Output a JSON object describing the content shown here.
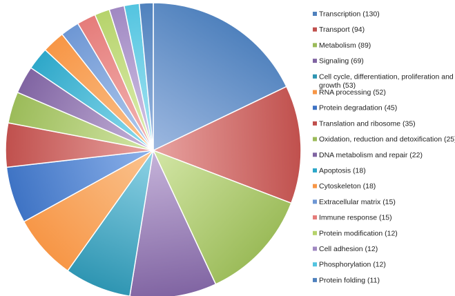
{
  "chart_data": {
    "type": "pie",
    "title": "",
    "legend_position": "right",
    "series": [
      {
        "label": "Transcription (130)",
        "value": 130,
        "color": "#4F81BD",
        "light": "#9DB8E0"
      },
      {
        "label": "Transport (94)",
        "value": 94,
        "color": "#C0504D",
        "light": "#E8A3A1"
      },
      {
        "label": "Metabolism (89)",
        "value": 89,
        "color": "#9BBB59",
        "light": "#D3E6A6"
      },
      {
        "label": "Signaling (69)",
        "value": 69,
        "color": "#8064A2",
        "light": "#C6B4DA"
      },
      {
        "label": "Cell cycle, differentiation, proliferation and growth (53)",
        "value": 53,
        "color": "#2E95B2",
        "light": "#8FD3E6"
      },
      {
        "label": "RNA  processing (52)",
        "value": 52,
        "color": "#F79646",
        "light": "#FAC38F"
      },
      {
        "label": "Protein degradation (45)",
        "value": 45,
        "color": "#3E73C4",
        "light": "#8DB2EA"
      },
      {
        "label": "Translation and ribosome (35)",
        "value": 35,
        "color": "#C0504D",
        "light": "#E8A3A1"
      },
      {
        "label": "Oxidation, reduction and detoxification (25)",
        "value": 25,
        "color": "#9BBB59",
        "light": "#D3E6A6"
      },
      {
        "label": "DNA metabolism and repair (22)",
        "value": 22,
        "color": "#8064A2",
        "light": "#C6B4DA"
      },
      {
        "label": "Apoptosis (18)",
        "value": 18,
        "color": "#2EA7C9",
        "light": "#8FDDEE"
      },
      {
        "label": "Cytoskeleton (18)",
        "value": 18,
        "color": "#F79646",
        "light": "#FAC38F"
      },
      {
        "label": "Extracellular matrix (15)",
        "value": 15,
        "color": "#6E97D4",
        "light": "#B5CCEE"
      },
      {
        "label": "Immune response (15)",
        "value": 15,
        "color": "#E57C7A",
        "light": "#F3B7B6"
      },
      {
        "label": "Protein modification (12)",
        "value": 12,
        "color": "#B6D36B",
        "light": "#E0EFB5"
      },
      {
        "label": "Cell adhesion (12)",
        "value": 12,
        "color": "#A088C2",
        "light": "#D6C9E8"
      },
      {
        "label": "Phosphorylation (12)",
        "value": 12,
        "color": "#53C4E0",
        "light": "#A9E6F3"
      },
      {
        "label": "Protein folding (11)",
        "value": 11,
        "color": "#4F81BD",
        "light": "#9DB8E0"
      }
    ]
  }
}
